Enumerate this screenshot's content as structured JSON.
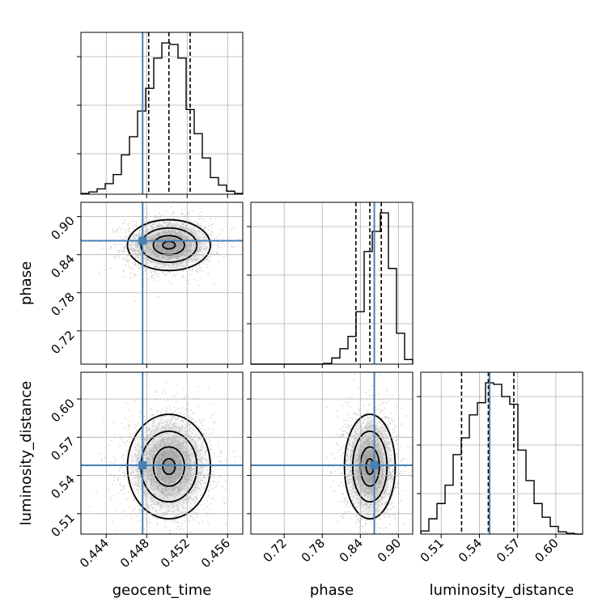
{
  "chart_data": {
    "type": "corner",
    "parameters": [
      "geocent_time",
      "phase",
      "luminosity_distance"
    ],
    "axis_labels": {
      "geocent_time": "geocent_time",
      "phase": "phase",
      "luminosity_distance": "luminosity_distance"
    },
    "ranges": {
      "geocent_time": [
        0.4415,
        0.4575
      ],
      "phase": [
        0.6675,
        0.9225
      ],
      "luminosity_distance": [
        0.494,
        0.621
      ]
    },
    "ticks": {
      "geocent_time": [
        0.444,
        0.448,
        0.452,
        0.456
      ],
      "phase": [
        0.72,
        0.78,
        0.84,
        0.9
      ],
      "luminosity_distance": [
        0.51,
        0.54,
        0.57,
        0.6
      ]
    },
    "tick_labels": {
      "geocent_time": [
        "0.444",
        "0.448",
        "0.452",
        "0.456"
      ],
      "phase": [
        "0.72",
        "0.78",
        "0.84",
        "0.90"
      ],
      "luminosity_distance": [
        "0.51",
        "0.54",
        "0.57",
        "0.60"
      ]
    },
    "truths": {
      "geocent_time": 0.4476,
      "phase": 0.862,
      "luminosity_distance": 0.548
    },
    "quantiles": {
      "geocent_time": [
        0.4482,
        0.4502,
        0.4523
      ],
      "phase": [
        0.833,
        0.855,
        0.873
      ],
      "luminosity_distance": [
        0.526,
        0.547,
        0.567
      ]
    },
    "grid": true,
    "histograms": {
      "geocent_time": {
        "edges": [
          0.4415,
          0.4423,
          0.4431,
          0.4439,
          0.4447,
          0.4455,
          0.4463,
          0.4471,
          0.4479,
          0.4487,
          0.4495,
          0.4503,
          0.4511,
          0.4519,
          0.4527,
          0.4535,
          0.4543,
          0.4551,
          0.4559,
          0.4567,
          0.4575
        ],
        "heights": [
          0.005,
          0.015,
          0.035,
          0.07,
          0.13,
          0.26,
          0.38,
          0.55,
          0.7,
          0.9,
          1.0,
          0.99,
          0.9,
          0.56,
          0.4,
          0.24,
          0.11,
          0.06,
          0.02,
          0.005
        ]
      },
      "phase": {
        "edges": [
          0.6675,
          0.68025,
          0.693,
          0.70575,
          0.7185,
          0.73125,
          0.744,
          0.75675,
          0.7695,
          0.78225,
          0.795,
          0.80775,
          0.8205,
          0.83325,
          0.846,
          0.85875,
          0.8715,
          0.88425,
          0.897,
          0.90975,
          0.9225
        ],
        "heights": [
          0,
          0,
          0,
          0,
          0,
          0,
          0,
          0,
          0,
          0.005,
          0.04,
          0.1,
          0.18,
          0.34,
          0.73,
          0.86,
          0.98,
          0.62,
          0.2,
          0.03
        ]
      },
      "luminosity_distance": {
        "edges": [
          0.494,
          0.50035,
          0.5067,
          0.51305,
          0.5194,
          0.52575,
          0.5321,
          0.53845,
          0.5448,
          0.55115,
          0.5575,
          0.56385,
          0.5702,
          0.57655,
          0.5829,
          0.58925,
          0.5956,
          0.60195,
          0.6083,
          0.61465,
          0.621
        ],
        "heights": [
          0.02,
          0.1,
          0.2,
          0.32,
          0.52,
          0.63,
          0.78,
          0.86,
          0.99,
          0.98,
          0.9,
          0.85,
          0.55,
          0.35,
          0.2,
          0.11,
          0.05,
          0.015,
          0.005,
          0
        ]
      }
    },
    "contour_fill": "#808080",
    "truth_color": "#4682b4",
    "scatter_color": "#c8c8c8"
  }
}
